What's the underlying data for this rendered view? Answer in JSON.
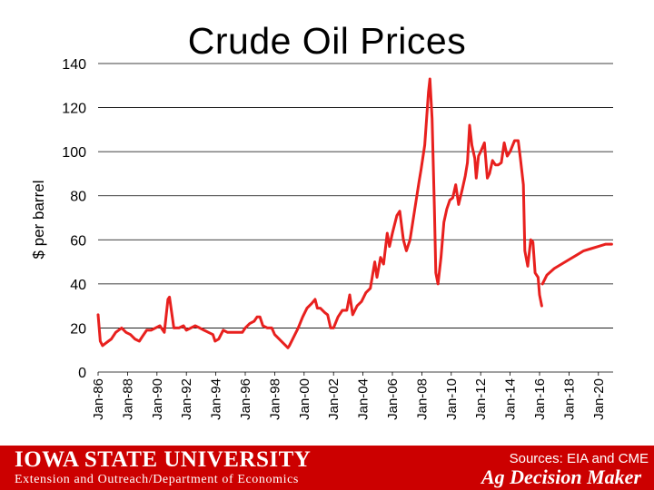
{
  "slide": {
    "footer": {
      "university": "IOWA STATE UNIVERSITY",
      "department": "Extension and Outreach/Department of Economics",
      "sources": "Sources: EIA and CME",
      "brand": "Ag Decision Maker"
    }
  },
  "colors": {
    "line": "#e8201e",
    "footer_bg": "#cc0000",
    "grid": "#000000"
  },
  "chart_data": {
    "type": "line",
    "title": "Crude Oil Prices",
    "ylabel": "$ per barrel",
    "xlabel": "",
    "ylim": [
      0,
      140
    ],
    "yticks": [
      0,
      20,
      40,
      60,
      80,
      100,
      120,
      140
    ],
    "xlim": [
      1986.0,
      2021.0
    ],
    "xticks": [
      {
        "x": 1986,
        "label": "Jan-86"
      },
      {
        "x": 1988,
        "label": "Jan-88"
      },
      {
        "x": 1990,
        "label": "Jan-90"
      },
      {
        "x": 1992,
        "label": "Jan-92"
      },
      {
        "x": 1994,
        "label": "Jan-94"
      },
      {
        "x": 1996,
        "label": "Jan-96"
      },
      {
        "x": 1998,
        "label": "Jan-98"
      },
      {
        "x": 2000,
        "label": "Jan-00"
      },
      {
        "x": 2002,
        "label": "Jan-02"
      },
      {
        "x": 2004,
        "label": "Jan-04"
      },
      {
        "x": 2006,
        "label": "Jan-06"
      },
      {
        "x": 2008,
        "label": "Jan-08"
      },
      {
        "x": 2010,
        "label": "Jan-10"
      },
      {
        "x": 2012,
        "label": "Jan-12"
      },
      {
        "x": 2014,
        "label": "Jan-14"
      },
      {
        "x": 2016,
        "label": "Jan-16"
      },
      {
        "x": 2018,
        "label": "Jan-18"
      },
      {
        "x": 2020,
        "label": "Jan-20"
      }
    ],
    "grid": "horizontal",
    "series": [
      {
        "values": [
          [
            1986.0,
            26
          ],
          [
            1986.15,
            14
          ],
          [
            1986.3,
            12
          ],
          [
            1986.5,
            13
          ],
          [
            1986.7,
            14
          ],
          [
            1986.9,
            15
          ],
          [
            1987.2,
            18
          ],
          [
            1987.6,
            20
          ],
          [
            1987.9,
            18
          ],
          [
            1988.2,
            17
          ],
          [
            1988.5,
            15
          ],
          [
            1988.8,
            14
          ],
          [
            1989.0,
            16
          ],
          [
            1989.3,
            19
          ],
          [
            1989.6,
            19
          ],
          [
            1989.9,
            20
          ],
          [
            1990.2,
            21
          ],
          [
            1990.5,
            18
          ],
          [
            1990.75,
            33
          ],
          [
            1990.85,
            34
          ],
          [
            1991.0,
            27
          ],
          [
            1991.15,
            20
          ],
          [
            1991.5,
            20
          ],
          [
            1991.8,
            21
          ],
          [
            1992.0,
            19
          ],
          [
            1992.3,
            20
          ],
          [
            1992.6,
            21
          ],
          [
            1992.9,
            20
          ],
          [
            1993.2,
            19
          ],
          [
            1993.5,
            18
          ],
          [
            1993.8,
            17
          ],
          [
            1993.95,
            14
          ],
          [
            1994.2,
            15
          ],
          [
            1994.5,
            19
          ],
          [
            1994.8,
            18
          ],
          [
            1995.0,
            18
          ],
          [
            1995.4,
            18
          ],
          [
            1995.8,
            18
          ],
          [
            1996.0,
            20
          ],
          [
            1996.3,
            22
          ],
          [
            1996.6,
            23
          ],
          [
            1996.8,
            25
          ],
          [
            1997.0,
            25
          ],
          [
            1997.2,
            21
          ],
          [
            1997.5,
            20
          ],
          [
            1997.8,
            20
          ],
          [
            1998.0,
            17
          ],
          [
            1998.3,
            15
          ],
          [
            1998.6,
            13
          ],
          [
            1998.9,
            11
          ],
          [
            1999.0,
            12
          ],
          [
            1999.3,
            16
          ],
          [
            1999.6,
            20
          ],
          [
            1999.9,
            25
          ],
          [
            2000.2,
            29
          ],
          [
            2000.5,
            31
          ],
          [
            2000.75,
            33
          ],
          [
            2000.9,
            29
          ],
          [
            2001.1,
            29
          ],
          [
            2001.4,
            27
          ],
          [
            2001.6,
            26
          ],
          [
            2001.8,
            20
          ],
          [
            2002.0,
            20
          ],
          [
            2002.3,
            25
          ],
          [
            2002.6,
            28
          ],
          [
            2002.9,
            28
          ],
          [
            2003.1,
            35
          ],
          [
            2003.3,
            26
          ],
          [
            2003.6,
            30
          ],
          [
            2003.9,
            32
          ],
          [
            2004.2,
            36
          ],
          [
            2004.5,
            38
          ],
          [
            2004.8,
            50
          ],
          [
            2004.95,
            43
          ],
          [
            2005.2,
            52
          ],
          [
            2005.4,
            49
          ],
          [
            2005.65,
            63
          ],
          [
            2005.8,
            57
          ],
          [
            2006.0,
            63
          ],
          [
            2006.3,
            71
          ],
          [
            2006.5,
            73
          ],
          [
            2006.75,
            60
          ],
          [
            2006.95,
            55
          ],
          [
            2007.2,
            60
          ],
          [
            2007.5,
            73
          ],
          [
            2007.8,
            86
          ],
          [
            2007.95,
            92
          ],
          [
            2008.2,
            103
          ],
          [
            2008.45,
            127
          ],
          [
            2008.55,
            133
          ],
          [
            2008.7,
            115
          ],
          [
            2008.85,
            75
          ],
          [
            2008.95,
            45
          ],
          [
            2009.1,
            40
          ],
          [
            2009.3,
            52
          ],
          [
            2009.5,
            68
          ],
          [
            2009.7,
            74
          ],
          [
            2009.9,
            78
          ],
          [
            2010.1,
            79
          ],
          [
            2010.3,
            85
          ],
          [
            2010.5,
            76
          ],
          [
            2010.75,
            83
          ],
          [
            2010.95,
            89
          ],
          [
            2011.1,
            95
          ],
          [
            2011.25,
            112
          ],
          [
            2011.4,
            103
          ],
          [
            2011.6,
            97
          ],
          [
            2011.7,
            88
          ],
          [
            2011.85,
            98
          ],
          [
            2012.0,
            100
          ],
          [
            2012.25,
            104
          ],
          [
            2012.45,
            88
          ],
          [
            2012.6,
            90
          ],
          [
            2012.8,
            96
          ],
          [
            2013.0,
            94
          ],
          [
            2013.2,
            94
          ],
          [
            2013.4,
            95
          ],
          [
            2013.6,
            104
          ],
          [
            2013.8,
            98
          ],
          [
            2014.0,
            100
          ],
          [
            2014.3,
            105
          ],
          [
            2014.55,
            105
          ],
          [
            2014.7,
            97
          ],
          [
            2014.9,
            85
          ],
          [
            2015.0,
            55
          ],
          [
            2015.2,
            48
          ],
          [
            2015.4,
            60
          ],
          [
            2015.55,
            59
          ],
          [
            2015.7,
            45
          ],
          [
            2015.9,
            43
          ],
          [
            2016.0,
            35
          ],
          [
            2016.15,
            30
          ]
        ]
      },
      {
        "values": [
          [
            2016.2,
            40
          ],
          [
            2016.5,
            44
          ],
          [
            2017.0,
            47
          ],
          [
            2017.5,
            49
          ],
          [
            2018.0,
            51
          ],
          [
            2018.5,
            53
          ],
          [
            2019.0,
            55
          ],
          [
            2019.5,
            56
          ],
          [
            2020.0,
            57
          ],
          [
            2020.5,
            58
          ],
          [
            2020.9,
            58
          ]
        ]
      }
    ]
  }
}
